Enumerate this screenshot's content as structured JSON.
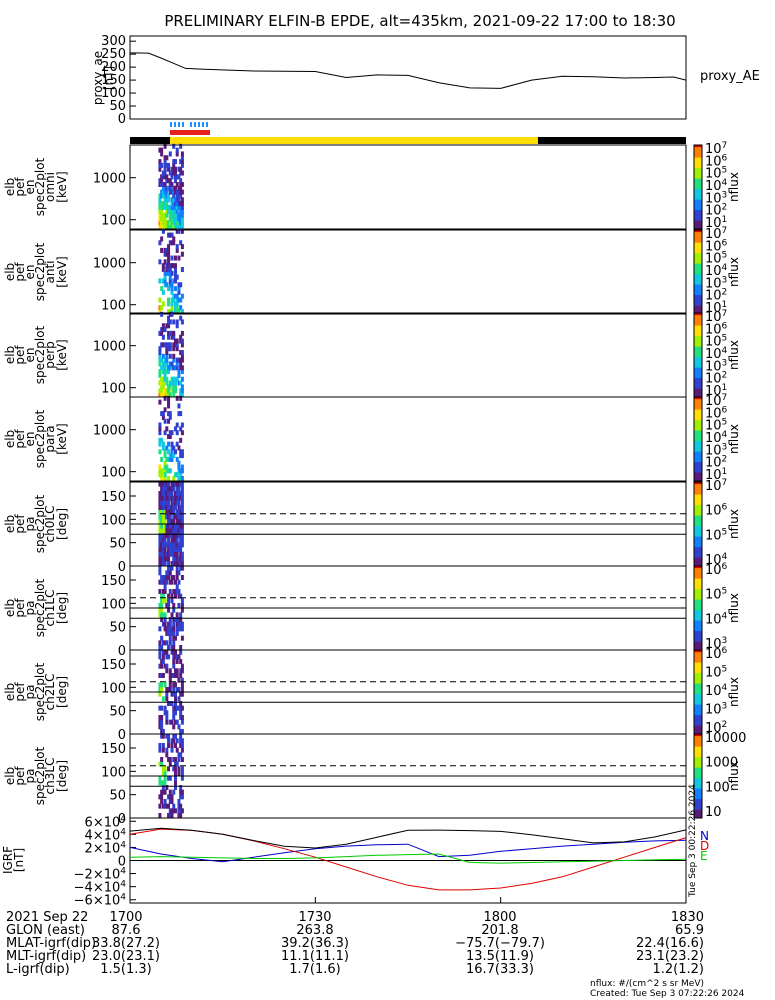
{
  "title": "PRELIMINARY ELFIN-B EPDE, alt=435km, 2021-09-22 17:00 to 18:30",
  "colors": {
    "fg": "#000000",
    "bar_red": "#e8201c",
    "bar_blue": "#1e90ff",
    "bar_yellow": "#ffdd00",
    "mag_n": "#0000cc",
    "mag_d": "#e00000",
    "mag_e": "#00cc00"
  },
  "flux_colorscale": [
    "#5a1a7a",
    "#3040d0",
    "#1080ff",
    "#10c8e0",
    "#20e080",
    "#a0f000",
    "#ffe000",
    "#ff8000",
    "#e00000"
  ],
  "ae_panel": {
    "ylabel": [
      "proxy_ae",
      "[nT]"
    ],
    "yticks": [
      "300",
      "250",
      "200",
      "150",
      "100",
      "50",
      "0"
    ],
    "legend": "proxy_AE"
  },
  "spec_panels": [
    {
      "ylabel": [
        "elb",
        "pef",
        "en",
        "spec2plot",
        "omni",
        "[keV]"
      ],
      "yticks": [
        "1000",
        "100"
      ],
      "cb_top": [
        "10",
        "7"
      ],
      "cb_ticks": [
        [
          "10",
          "6"
        ],
        [
          "10",
          "5"
        ],
        [
          "10",
          "4"
        ],
        [
          "10",
          "3"
        ],
        [
          "10",
          "2"
        ],
        [
          "10",
          "1"
        ]
      ],
      "cb_label": "nflux"
    },
    {
      "ylabel": [
        "elb",
        "pef",
        "en",
        "spec2plot",
        "anti",
        "[keV]"
      ],
      "yticks": [
        "1000",
        "100"
      ],
      "cb_top": [
        "10",
        "7"
      ],
      "cb_ticks": [
        [
          "10",
          "6"
        ],
        [
          "10",
          "5"
        ],
        [
          "10",
          "4"
        ],
        [
          "10",
          "3"
        ],
        [
          "10",
          "2"
        ],
        [
          "10",
          "1"
        ]
      ],
      "cb_label": "nflux"
    },
    {
      "ylabel": [
        "elb",
        "pef",
        "en",
        "spec2plot",
        "perp",
        "[keV]"
      ],
      "yticks": [
        "1000",
        "100"
      ],
      "cb_top": [
        "10",
        "7"
      ],
      "cb_ticks": [
        [
          "10",
          "6"
        ],
        [
          "10",
          "5"
        ],
        [
          "10",
          "4"
        ],
        [
          "10",
          "3"
        ],
        [
          "10",
          "2"
        ],
        [
          "10",
          "1"
        ]
      ],
      "cb_label": "nflux"
    },
    {
      "ylabel": [
        "elb",
        "pef",
        "en",
        "spec2plot",
        "para",
        "[keV]"
      ],
      "yticks": [
        "1000",
        "100"
      ],
      "cb_top": [
        "10",
        "7"
      ],
      "cb_ticks": [
        [
          "10",
          "6"
        ],
        [
          "10",
          "5"
        ],
        [
          "10",
          "4"
        ],
        [
          "10",
          "3"
        ],
        [
          "10",
          "2"
        ],
        [
          "10",
          "1"
        ]
      ],
      "cb_label": "nflux"
    }
  ],
  "pa_panels": [
    {
      "ylabel": [
        "elb",
        "pef",
        "pa",
        "spec2plot",
        "ch0LC",
        "[deg]"
      ],
      "yticks": [
        "150",
        "100",
        "50",
        "0"
      ],
      "cb_top": [
        "10",
        "7"
      ],
      "cb_ticks": [
        [
          "10",
          "6"
        ],
        [
          "10",
          "5"
        ],
        [
          "10",
          "4"
        ]
      ],
      "cb_label": "nflux"
    },
    {
      "ylabel": [
        "elb",
        "pef",
        "pa",
        "spec2plot",
        "ch1LC",
        "[deg]"
      ],
      "yticks": [
        "150",
        "100",
        "50",
        "0"
      ],
      "cb_top": [],
      "cb_ticks": [
        [
          "10",
          "6"
        ],
        [
          "10",
          "5"
        ],
        [
          "10",
          "4"
        ],
        [
          "10",
          "3"
        ]
      ],
      "cb_label": "nflux"
    },
    {
      "ylabel": [
        "elb",
        "pef",
        "pa",
        "spec2plot",
        "ch2LC",
        "[deg]"
      ],
      "yticks": [
        "150",
        "100",
        "50",
        "0"
      ],
      "cb_top": [
        "10",
        "6"
      ],
      "cb_ticks": [
        [
          "10",
          "5"
        ],
        [
          "10",
          "4"
        ],
        [
          "10",
          "3"
        ],
        [
          "10",
          "2"
        ]
      ],
      "cb_label": "nflux"
    },
    {
      "ylabel": [
        "elb",
        "pef",
        "pa",
        "spec2plot",
        "ch3LC",
        "[deg]"
      ],
      "yticks": [
        "150",
        "100",
        "50",
        "0"
      ],
      "cb_top": [],
      "cb_ticks": [
        [
          "10000",
          ""
        ],
        [
          "1000",
          ""
        ],
        [
          "100",
          ""
        ],
        [
          "10",
          ""
        ]
      ],
      "cb_label": "nflux"
    }
  ],
  "mag_panel": {
    "ylabel": [
      "IGRF",
      "[nT]"
    ],
    "yticks": [
      [
        "6",
        "4"
      ],
      [
        "4",
        "4"
      ],
      [
        "2",
        "4"
      ],
      [
        "0",
        ""
      ],
      [
        "−2",
        "4"
      ],
      [
        "−4",
        "4"
      ],
      [
        "−6",
        "4"
      ]
    ],
    "legend": [
      "N",
      "D",
      "E"
    ],
    "stamp": "Tue Sep  3 00:22:26 2024"
  },
  "footer": {
    "rows": [
      [
        "2021 Sep 22",
        "1700",
        "1730",
        "1800",
        "1830"
      ],
      [
        "GLON (east)",
        "87.6",
        "263.8",
        "201.8",
        "65.9"
      ],
      [
        "MLAT-igrf(dip)",
        "33.8(27.2)",
        "39.2(36.3)",
        "−75.7(−79.7)",
        "22.4(16.6)"
      ],
      [
        "MLT-igrf(dip)",
        "23.0(23.1)",
        "11.1(11.1)",
        "13.5(11.9)",
        "23.1(23.2)"
      ],
      [
        "L-igrf(dip)",
        "1.5(1.3)",
        "1.7(1.6)",
        "16.7(33.3)",
        "1.2(1.2)"
      ]
    ],
    "units": "nflux: #/(cm^2 s sr MeV)",
    "created": "Created: Tue Sep  3 07:22:26 2024"
  },
  "chart_data": {
    "type": "multi-panel time series and spectrogram",
    "time_range": [
      "17:00",
      "18:30"
    ],
    "x_tick_labels": [
      "1700",
      "1730",
      "1800",
      "1830"
    ],
    "ae": {
      "ylabel": "proxy_ae [nT]",
      "ylim": [
        0,
        320
      ],
      "x_min": [
        0,
        3,
        5,
        7,
        9,
        12,
        20,
        30,
        35,
        40,
        45,
        50,
        55,
        60,
        65,
        70,
        75,
        80,
        85,
        88,
        90
      ],
      "y_nt": [
        255,
        254,
        235,
        215,
        195,
        192,
        185,
        183,
        160,
        170,
        168,
        140,
        120,
        118,
        150,
        165,
        163,
        158,
        160,
        162,
        150
      ]
    },
    "science_zone_minutes": [
      4.5,
      8.5
    ],
    "energy_ylim_keV": [
      60,
      6000
    ],
    "pitch_angle_ylim_deg": [
      0,
      180
    ],
    "pitch_angle_reference_lines_deg": [
      112,
      90,
      68
    ],
    "colorbar_range_nflux": [
      10,
      10000000
    ],
    "igrf": {
      "ylabel": "IGRF [nT]",
      "ylim": [
        -65000,
        65000
      ],
      "x_min": [
        0,
        5,
        10,
        15,
        20,
        25,
        30,
        35,
        40,
        45,
        50,
        55,
        60,
        65,
        70,
        75,
        80,
        85,
        90
      ],
      "series": [
        {
          "name": "N",
          "values": [
            20000,
            10000,
            3000,
            -2000,
            5000,
            12000,
            18000,
            22000,
            24000,
            25000,
            6000,
            8000,
            14000,
            18000,
            22000,
            25000,
            28000,
            30000,
            31000
          ]
        },
        {
          "name": "D",
          "values": [
            40000,
            48000,
            46000,
            40000,
            30000,
            18000,
            5000,
            -10000,
            -25000,
            -38000,
            -45000,
            -45000,
            -42000,
            -35000,
            -25000,
            -10000,
            5000,
            20000,
            35000
          ]
        },
        {
          "name": "E",
          "values": [
            5000,
            6000,
            5000,
            4000,
            3000,
            3000,
            4000,
            6000,
            8000,
            9000,
            10000,
            -3000,
            -4000,
            -3000,
            -2000,
            -1000,
            0,
            1000,
            2000
          ]
        }
      ]
    }
  }
}
